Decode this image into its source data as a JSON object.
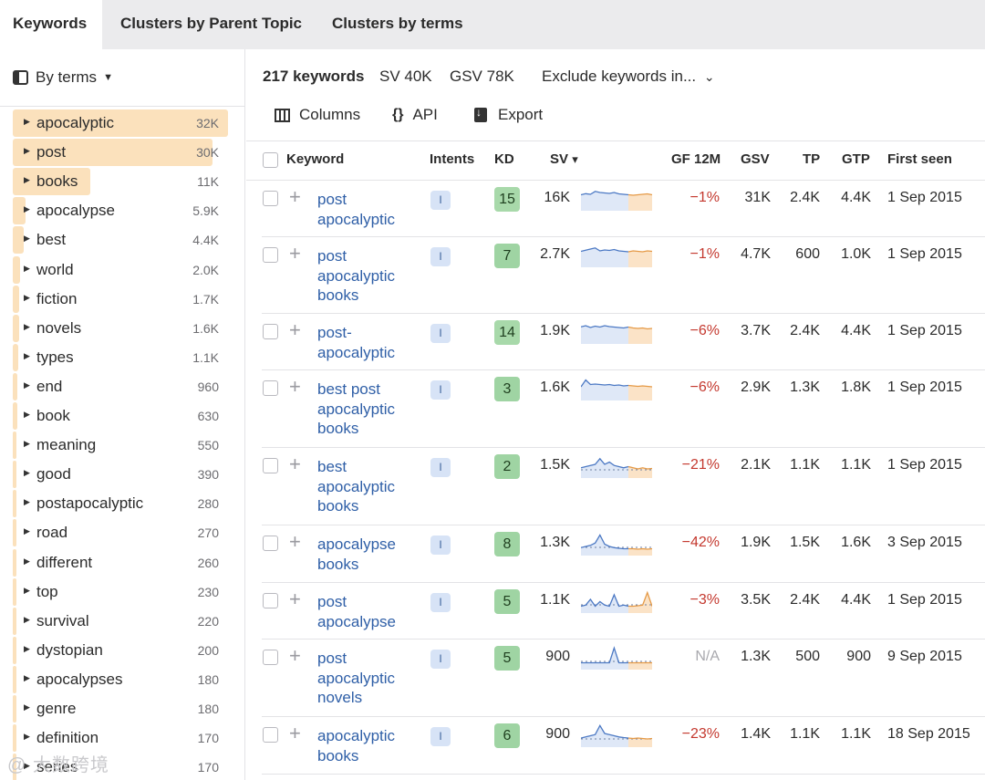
{
  "tabs": [
    "Keywords",
    "Clusters by Parent Topic",
    "Clusters by terms"
  ],
  "sidebar": {
    "mode_label": "By terms",
    "terms": [
      {
        "name": "apocalyptic",
        "count": "32K",
        "fill": 1.0
      },
      {
        "name": "post",
        "count": "30K",
        "fill": 0.93
      },
      {
        "name": "books",
        "count": "11K",
        "fill": 0.36
      },
      {
        "name": "apocalypse",
        "count": "5.9K",
        "fill": 0.06
      },
      {
        "name": "best",
        "count": "4.4K",
        "fill": 0.05
      },
      {
        "name": "world",
        "count": "2.0K",
        "fill": 0.035
      },
      {
        "name": "fiction",
        "count": "1.7K",
        "fill": 0.03
      },
      {
        "name": "novels",
        "count": "1.6K",
        "fill": 0.03
      },
      {
        "name": "types",
        "count": "1.1K",
        "fill": 0.025
      },
      {
        "name": "end",
        "count": "960",
        "fill": 0.02
      },
      {
        "name": "book",
        "count": "630",
        "fill": 0.02
      },
      {
        "name": "meaning",
        "count": "550",
        "fill": 0.018
      },
      {
        "name": "good",
        "count": "390",
        "fill": 0.016
      },
      {
        "name": "postapocalyptic",
        "count": "280",
        "fill": 0.015
      },
      {
        "name": "road",
        "count": "270",
        "fill": 0.015
      },
      {
        "name": "different",
        "count": "260",
        "fill": 0.015
      },
      {
        "name": "top",
        "count": "230",
        "fill": 0.014
      },
      {
        "name": "survival",
        "count": "220",
        "fill": 0.014
      },
      {
        "name": "dystopian",
        "count": "200",
        "fill": 0.013
      },
      {
        "name": "apocalypses",
        "count": "180",
        "fill": 0.013
      },
      {
        "name": "genre",
        "count": "180",
        "fill": 0.013
      },
      {
        "name": "definition",
        "count": "170",
        "fill": 0.012
      },
      {
        "name": "series",
        "count": "170",
        "fill": 0.012
      }
    ]
  },
  "summary": {
    "keywords": "217 keywords",
    "sv": "SV 40K",
    "gsv": "GSV 78K",
    "exclude": "Exclude keywords in...",
    "exclude_caret": "⌄"
  },
  "toolbar": {
    "columns": "Columns",
    "api": "API",
    "export": "Export",
    "api_icon": "{}"
  },
  "headers": {
    "keyword": "Keyword",
    "intents": "Intents",
    "kd": "KD",
    "sv": "SV",
    "sv_sort": "▾",
    "gf": "GF 12M",
    "gsv": "GSV",
    "tp": "TP",
    "gtp": "GTP",
    "first_seen": "First seen"
  },
  "plus_glyph": "+",
  "rows": [
    {
      "keyword": "post apocalyptic",
      "intent": "I",
      "kd": "15",
      "sv": "16K",
      "gf": "−1%",
      "gsv": "31K",
      "tp": "2.4K",
      "gtp": "4.4K",
      "first_seen": "1 Sep 2015",
      "trend": [
        0.7,
        0.75,
        0.72,
        0.85,
        0.8,
        0.78,
        0.76,
        0.8,
        0.74,
        0.72,
        0.7,
        0.68,
        0.7,
        0.72,
        0.74,
        0.7
      ],
      "dashed": false
    },
    {
      "keyword": "post apocalyptic books",
      "intent": "I",
      "kd": "7",
      "sv": "2.7K",
      "gf": "−1%",
      "gsv": "4.7K",
      "tp": "600",
      "gtp": "1.0K",
      "first_seen": "1 Sep 2015",
      "trend": [
        0.7,
        0.75,
        0.8,
        0.85,
        0.72,
        0.76,
        0.74,
        0.78,
        0.72,
        0.7,
        0.68,
        0.72,
        0.7,
        0.68,
        0.72,
        0.7
      ],
      "dashed": false
    },
    {
      "keyword": "post-apocalyptic",
      "intent": "I",
      "kd": "14",
      "sv": "1.9K",
      "gf": "−6%",
      "gsv": "3.7K",
      "tp": "2.4K",
      "gtp": "4.4K",
      "first_seen": "1 Sep 2015",
      "trend": [
        0.75,
        0.8,
        0.72,
        0.78,
        0.74,
        0.8,
        0.76,
        0.74,
        0.72,
        0.7,
        0.74,
        0.7,
        0.68,
        0.7,
        0.66,
        0.68
      ],
      "dashed": false
    },
    {
      "keyword": "best post apocalyptic books",
      "intent": "I",
      "kd": "3",
      "sv": "1.6K",
      "gf": "−6%",
      "gsv": "2.9K",
      "tp": "1.3K",
      "gtp": "1.8K",
      "first_seen": "1 Sep 2015",
      "trend": [
        0.6,
        0.9,
        0.7,
        0.72,
        0.7,
        0.68,
        0.7,
        0.66,
        0.68,
        0.64,
        0.66,
        0.64,
        0.62,
        0.64,
        0.62,
        0.6
      ],
      "dashed": false
    },
    {
      "keyword": "best apocalyptic books",
      "intent": "I",
      "kd": "2",
      "sv": "1.5K",
      "gf": "−21%",
      "gsv": "2.1K",
      "tp": "1.1K",
      "gtp": "1.1K",
      "first_seen": "1 Sep 2015",
      "trend": [
        0.45,
        0.5,
        0.55,
        0.6,
        0.85,
        0.6,
        0.7,
        0.55,
        0.5,
        0.45,
        0.5,
        0.45,
        0.4,
        0.45,
        0.4,
        0.42
      ],
      "dashed": true
    },
    {
      "keyword": "apocalypse books",
      "intent": "I",
      "kd": "8",
      "sv": "1.3K",
      "gf": "−42%",
      "gsv": "1.9K",
      "tp": "1.5K",
      "gtp": "1.6K",
      "first_seen": "3 Sep 2015",
      "trend": [
        0.35,
        0.4,
        0.45,
        0.55,
        0.9,
        0.5,
        0.4,
        0.35,
        0.32,
        0.3,
        0.3,
        0.3,
        0.28,
        0.3,
        0.28,
        0.3
      ],
      "dashed": true
    },
    {
      "keyword": "post apocalypse",
      "intent": "I",
      "kd": "5",
      "sv": "1.1K",
      "gf": "−3%",
      "gsv": "3.5K",
      "tp": "2.4K",
      "gtp": "4.4K",
      "first_seen": "1 Sep 2015",
      "trend": [
        0.3,
        0.35,
        0.6,
        0.3,
        0.5,
        0.35,
        0.3,
        0.8,
        0.3,
        0.35,
        0.3,
        0.3,
        0.32,
        0.35,
        0.9,
        0.3
      ],
      "dashed": true
    },
    {
      "keyword": "post apocalyptic novels",
      "intent": "I",
      "kd": "5",
      "sv": "900",
      "gf": "N/A",
      "gsv": "1.3K",
      "tp": "500",
      "gtp": "900",
      "first_seen": "9 Sep 2015",
      "trend": [
        0.3,
        0.3,
        0.3,
        0.3,
        0.3,
        0.3,
        0.3,
        0.95,
        0.3,
        0.3,
        0.3,
        0.3,
        0.3,
        0.3,
        0.3,
        0.3
      ],
      "dashed": true
    },
    {
      "keyword": "apocalyptic books",
      "intent": "I",
      "kd": "6",
      "sv": "900",
      "gf": "−23%",
      "gsv": "1.4K",
      "tp": "1.1K",
      "gtp": "1.1K",
      "first_seen": "18 Sep 2015",
      "trend": [
        0.4,
        0.45,
        0.5,
        0.55,
        0.95,
        0.6,
        0.55,
        0.5,
        0.45,
        0.42,
        0.4,
        0.38,
        0.4,
        0.38,
        0.36,
        0.38
      ],
      "dashed": true
    }
  ],
  "watermark": "@ 大数跨境",
  "colors": {
    "accent_link": "#2f5fa7",
    "kd_green": "#9fd4a3",
    "term_bar": "#fbe1bc",
    "negative": "#c4382e"
  }
}
